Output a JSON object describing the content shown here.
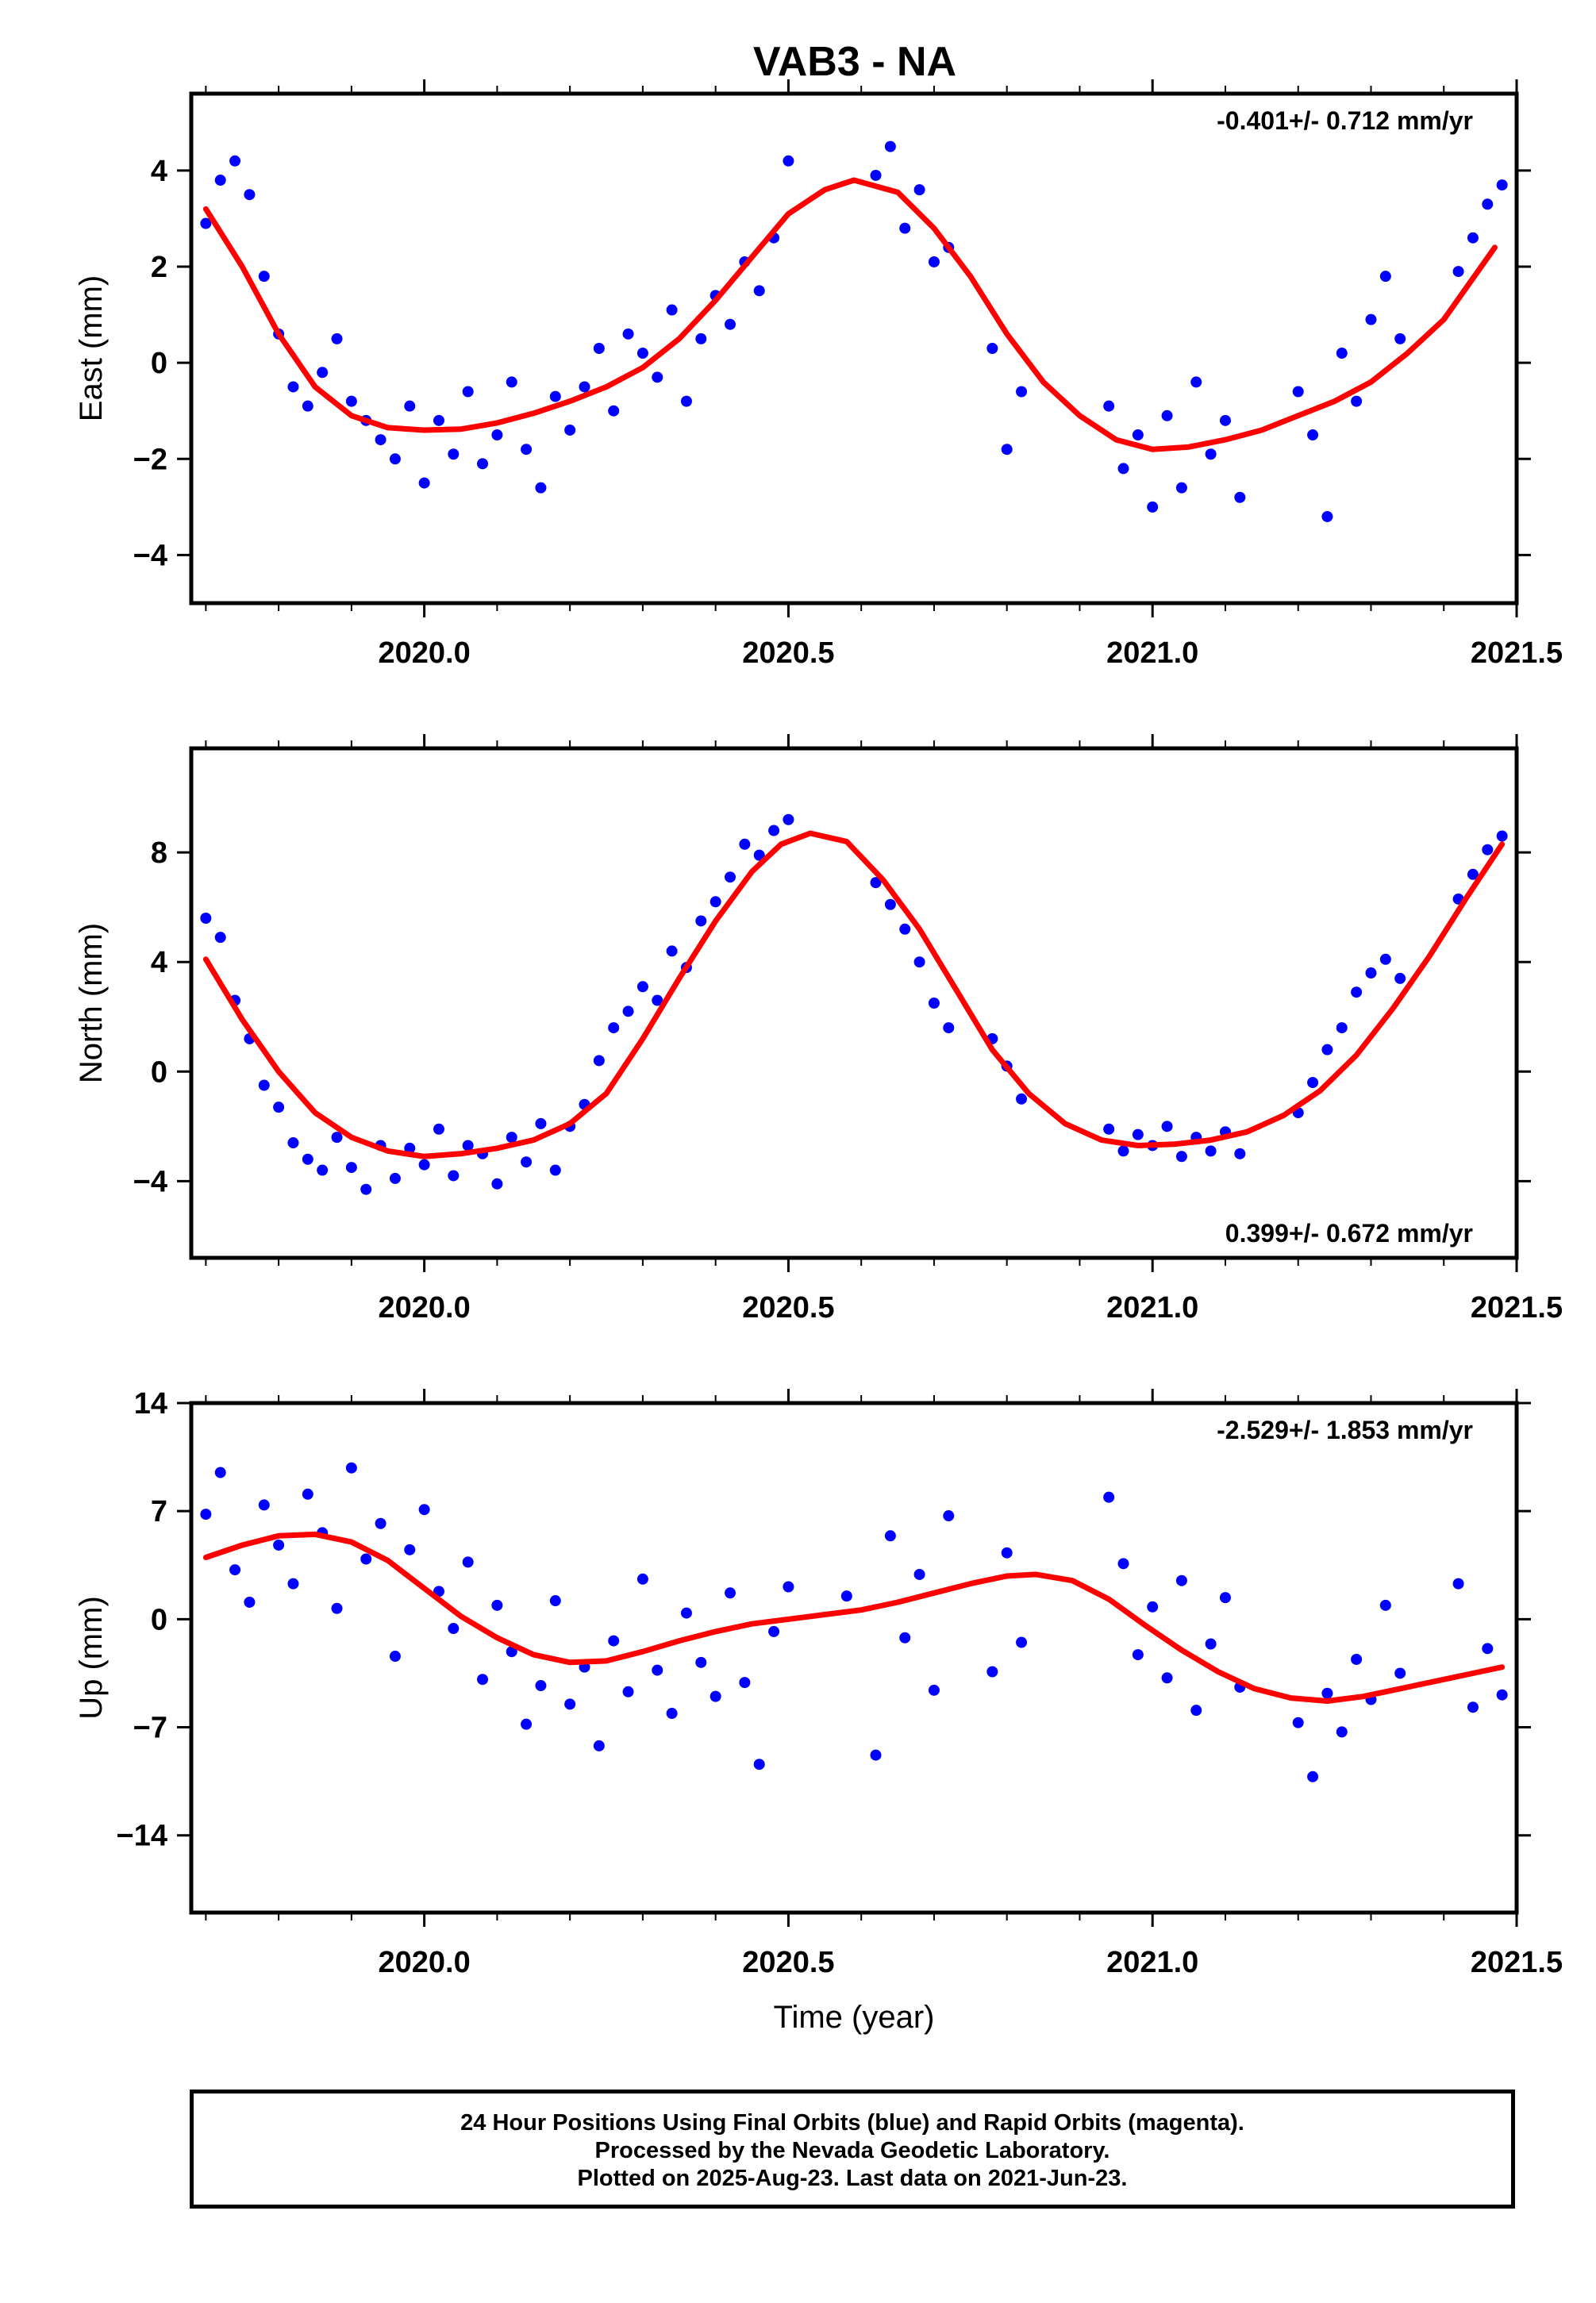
{
  "chart_data": [
    {
      "type": "scatter",
      "panel": "east",
      "title": "VAB3 - NA",
      "ylabel": "East (mm)",
      "xlabel": "",
      "xlim": [
        2019.68,
        2021.5
      ],
      "ylim": [
        -5.0,
        5.6
      ],
      "y_ticks": [
        -4,
        -2,
        0,
        2,
        4
      ],
      "y_tick_labels": [
        "−4",
        "−2",
        "0",
        "2",
        "4"
      ],
      "x_ticks": [
        2020.0,
        2020.5,
        2021.0,
        2021.5
      ],
      "x_tick_labels": [
        "2020.0",
        "2020.5",
        "2021.0",
        "2021.5"
      ],
      "annotation": "-0.401+/- 0.712 mm/yr",
      "grid": false,
      "series": [
        {
          "role": "points",
          "color": "#0000ff",
          "x": [
            2019.7,
            2019.72,
            2019.74,
            2019.76,
            2019.78,
            2019.8,
            2019.82,
            2019.84,
            2019.86,
            2019.88,
            2019.9,
            2019.92,
            2019.94,
            2019.96,
            2019.98,
            2020.0,
            2020.02,
            2020.04,
            2020.06,
            2020.08,
            2020.1,
            2020.12,
            2020.14,
            2020.16,
            2020.18,
            2020.2,
            2020.22,
            2020.24,
            2020.26,
            2020.28,
            2020.3,
            2020.32,
            2020.34,
            2020.36,
            2020.38,
            2020.4,
            2020.42,
            2020.44,
            2020.46,
            2020.48,
            2020.5,
            2020.62,
            2020.64,
            2020.66,
            2020.68,
            2020.7,
            2020.72,
            2020.78,
            2020.8,
            2020.82,
            2020.94,
            2020.96,
            2020.98,
            2021.0,
            2021.02,
            2021.04,
            2021.06,
            2021.08,
            2021.1,
            2021.12,
            2021.2,
            2021.22,
            2021.24,
            2021.26,
            2021.28,
            2021.3,
            2021.32,
            2021.34,
            2021.42,
            2021.44,
            2021.46,
            2021.48
          ],
          "y": [
            2.9,
            3.8,
            4.2,
            3.5,
            1.8,
            0.6,
            -0.5,
            -0.9,
            -0.2,
            0.5,
            -0.8,
            -1.2,
            -1.6,
            -2.0,
            -0.9,
            -2.5,
            -1.2,
            -1.9,
            -0.6,
            -2.1,
            -1.5,
            -0.4,
            -1.8,
            -2.6,
            -0.7,
            -1.4,
            -0.5,
            0.3,
            -1.0,
            0.6,
            0.2,
            -0.3,
            1.1,
            -0.8,
            0.5,
            1.4,
            0.8,
            2.1,
            1.5,
            2.6,
            4.2,
            3.9,
            4.5,
            2.8,
            3.6,
            2.1,
            2.4,
            0.3,
            -1.8,
            -0.6,
            -0.9,
            -2.2,
            -1.5,
            -3.0,
            -1.1,
            -2.6,
            -0.4,
            -1.9,
            -1.2,
            -2.8,
            -0.6,
            -1.5,
            -3.2,
            0.2,
            -0.8,
            0.9,
            1.8,
            0.5,
            1.9,
            2.6,
            3.3,
            3.7
          ]
        },
        {
          "role": "fit",
          "color": "#ff0000",
          "x": [
            2019.7,
            2019.75,
            2019.8,
            2019.85,
            2019.9,
            2019.95,
            2020.0,
            2020.05,
            2020.1,
            2020.15,
            2020.2,
            2020.25,
            2020.3,
            2020.35,
            2020.4,
            2020.45,
            2020.5,
            2020.55,
            2020.59,
            2020.65,
            2020.7,
            2020.75,
            2020.8,
            2020.85,
            2020.9,
            2020.95,
            2021.0,
            2021.05,
            2021.1,
            2021.15,
            2021.2,
            2021.25,
            2021.3,
            2021.35,
            2021.4,
            2021.47
          ],
          "y": [
            3.2,
            2.0,
            0.6,
            -0.5,
            -1.1,
            -1.35,
            -1.4,
            -1.38,
            -1.25,
            -1.05,
            -0.8,
            -0.5,
            -0.1,
            0.5,
            1.3,
            2.2,
            3.1,
            3.6,
            3.8,
            3.55,
            2.8,
            1.8,
            0.6,
            -0.4,
            -1.1,
            -1.6,
            -1.8,
            -1.75,
            -1.6,
            -1.4,
            -1.1,
            -0.8,
            -0.4,
            0.2,
            0.9,
            2.4
          ]
        }
      ]
    },
    {
      "type": "scatter",
      "panel": "north",
      "title": "",
      "ylabel": "North (mm)",
      "xlabel": "",
      "xlim": [
        2019.68,
        2021.5
      ],
      "ylim": [
        -6.8,
        11.8
      ],
      "y_ticks": [
        -4,
        0,
        4,
        8
      ],
      "y_tick_labels": [
        "−4",
        "0",
        "4",
        "8"
      ],
      "x_ticks": [
        2020.0,
        2020.5,
        2021.0,
        2021.5
      ],
      "x_tick_labels": [
        "2020.0",
        "2020.5",
        "2021.0",
        "2021.5"
      ],
      "annotation": "0.399+/- 0.672 mm/yr",
      "grid": false,
      "series": [
        {
          "role": "points",
          "color": "#0000ff",
          "x": [
            2019.7,
            2019.72,
            2019.74,
            2019.76,
            2019.78,
            2019.8,
            2019.82,
            2019.84,
            2019.86,
            2019.88,
            2019.9,
            2019.92,
            2019.94,
            2019.96,
            2019.98,
            2020.0,
            2020.02,
            2020.04,
            2020.06,
            2020.08,
            2020.1,
            2020.12,
            2020.14,
            2020.16,
            2020.18,
            2020.2,
            2020.22,
            2020.24,
            2020.26,
            2020.28,
            2020.3,
            2020.32,
            2020.34,
            2020.36,
            2020.38,
            2020.4,
            2020.42,
            2020.44,
            2020.46,
            2020.48,
            2020.5,
            2020.62,
            2020.64,
            2020.66,
            2020.68,
            2020.7,
            2020.72,
            2020.78,
            2020.8,
            2020.82,
            2020.94,
            2020.96,
            2020.98,
            2021.0,
            2021.02,
            2021.04,
            2021.06,
            2021.08,
            2021.1,
            2021.12,
            2021.2,
            2021.22,
            2021.24,
            2021.26,
            2021.28,
            2021.3,
            2021.32,
            2021.34,
            2021.42,
            2021.44,
            2021.46,
            2021.48
          ],
          "y": [
            5.6,
            4.9,
            2.6,
            1.2,
            -0.5,
            -1.3,
            -2.6,
            -3.2,
            -3.6,
            -2.4,
            -3.5,
            -4.3,
            -2.7,
            -3.9,
            -2.8,
            -3.4,
            -2.1,
            -3.8,
            -2.7,
            -3.0,
            -4.1,
            -2.4,
            -3.3,
            -1.9,
            -3.6,
            -2.0,
            -1.2,
            0.4,
            1.6,
            2.2,
            3.1,
            2.6,
            4.4,
            3.8,
            5.5,
            6.2,
            7.1,
            8.3,
            7.9,
            8.8,
            9.2,
            6.9,
            6.1,
            5.2,
            4.0,
            2.5,
            1.6,
            1.2,
            0.2,
            -1.0,
            -2.1,
            -2.9,
            -2.3,
            -2.7,
            -2.0,
            -3.1,
            -2.4,
            -2.9,
            -2.2,
            -3.0,
            -1.5,
            -0.4,
            0.8,
            1.6,
            2.9,
            3.6,
            4.1,
            3.4,
            6.3,
            7.2,
            8.1,
            8.6
          ]
        },
        {
          "role": "fit",
          "color": "#ff0000",
          "x": [
            2019.7,
            2019.75,
            2019.8,
            2019.85,
            2019.9,
            2019.95,
            2020.0,
            2020.05,
            2020.1,
            2020.15,
            2020.2,
            2020.25,
            2020.3,
            2020.35,
            2020.4,
            2020.45,
            2020.49,
            2020.53,
            2020.58,
            2020.63,
            2020.68,
            2020.73,
            2020.78,
            2020.83,
            2020.88,
            2020.93,
            2020.98,
            2021.03,
            2021.08,
            2021.13,
            2021.18,
            2021.23,
            2021.28,
            2021.33,
            2021.38,
            2021.43,
            2021.48
          ],
          "y": [
            4.1,
            1.9,
            0.0,
            -1.5,
            -2.4,
            -2.9,
            -3.1,
            -3.0,
            -2.8,
            -2.5,
            -1.9,
            -0.8,
            1.2,
            3.4,
            5.5,
            7.3,
            8.3,
            8.7,
            8.4,
            7.0,
            5.2,
            3.0,
            0.8,
            -0.8,
            -1.9,
            -2.5,
            -2.7,
            -2.65,
            -2.5,
            -2.2,
            -1.6,
            -0.7,
            0.6,
            2.3,
            4.2,
            6.3,
            8.3
          ]
        }
      ]
    },
    {
      "type": "scatter",
      "panel": "up",
      "title": "",
      "ylabel": "Up (mm)",
      "xlabel": "Time (year)",
      "xlim": [
        2019.68,
        2021.5
      ],
      "ylim": [
        -19.0,
        14.0
      ],
      "y_ticks": [
        -14,
        -7,
        0,
        7,
        14
      ],
      "y_tick_labels": [
        "−14",
        "−7",
        "0",
        "7",
        "14"
      ],
      "x_ticks": [
        2020.0,
        2020.5,
        2021.0,
        2021.5
      ],
      "x_tick_labels": [
        "2020.0",
        "2020.5",
        "2021.0",
        "2021.5"
      ],
      "annotation": "-2.529+/- 1.853 mm/yr",
      "grid": false,
      "series": [
        {
          "role": "points",
          "color": "#0000ff",
          "x": [
            2019.7,
            2019.72,
            2019.74,
            2019.76,
            2019.78,
            2019.8,
            2019.82,
            2019.84,
            2019.86,
            2019.88,
            2019.9,
            2019.92,
            2019.94,
            2019.96,
            2019.98,
            2020.0,
            2020.02,
            2020.04,
            2020.06,
            2020.08,
            2020.1,
            2020.12,
            2020.14,
            2020.16,
            2020.18,
            2020.2,
            2020.22,
            2020.24,
            2020.26,
            2020.28,
            2020.3,
            2020.32,
            2020.34,
            2020.36,
            2020.38,
            2020.4,
            2020.42,
            2020.44,
            2020.46,
            2020.48,
            2020.5,
            2020.58,
            2020.62,
            2020.64,
            2020.66,
            2020.68,
            2020.7,
            2020.72,
            2020.78,
            2020.8,
            2020.82,
            2020.94,
            2020.96,
            2020.98,
            2021.0,
            2021.02,
            2021.04,
            2021.06,
            2021.08,
            2021.1,
            2021.12,
            2021.2,
            2021.22,
            2021.24,
            2021.26,
            2021.28,
            2021.3,
            2021.32,
            2021.34,
            2021.42,
            2021.44,
            2021.46,
            2021.48
          ],
          "y": [
            6.8,
            9.5,
            3.2,
            1.1,
            7.4,
            4.8,
            2.3,
            8.1,
            5.6,
            0.7,
            9.8,
            3.9,
            6.2,
            -2.4,
            4.5,
            7.1,
            1.8,
            -0.6,
            3.7,
            -3.9,
            0.9,
            -2.1,
            -6.8,
            -4.3,
            1.2,
            -5.5,
            -3.1,
            -8.2,
            -1.4,
            -4.7,
            2.6,
            -3.3,
            -6.1,
            0.4,
            -2.8,
            -5.0,
            1.7,
            -4.1,
            -9.4,
            -0.8,
            2.1,
            1.5,
            -8.8,
            5.4,
            -1.2,
            2.9,
            -4.6,
            6.7,
            -3.4,
            4.3,
            -1.5,
            7.9,
            3.6,
            -2.3,
            0.8,
            -3.8,
            2.5,
            -5.9,
            -1.6,
            1.4,
            -4.4,
            -6.7,
            -10.2,
            -4.8,
            -7.3,
            -2.6,
            -5.2,
            0.9,
            -3.5,
            2.3,
            -5.7,
            -1.9,
            -4.9
          ]
        },
        {
          "role": "fit",
          "color": "#ff0000",
          "x": [
            2019.7,
            2019.75,
            2019.8,
            2019.85,
            2019.9,
            2019.95,
            2020.0,
            2020.05,
            2020.1,
            2020.15,
            2020.2,
            2020.25,
            2020.3,
            2020.35,
            2020.4,
            2020.45,
            2020.5,
            2020.55,
            2020.6,
            2020.65,
            2020.7,
            2020.75,
            2020.8,
            2020.84,
            2020.89,
            2020.94,
            2020.99,
            2021.04,
            2021.09,
            2021.14,
            2021.19,
            2021.24,
            2021.29,
            2021.34,
            2021.39,
            2021.44,
            2021.48
          ],
          "y": [
            4.0,
            4.8,
            5.4,
            5.5,
            5.0,
            3.8,
            2.0,
            0.2,
            -1.2,
            -2.3,
            -2.8,
            -2.7,
            -2.1,
            -1.4,
            -0.8,
            -0.3,
            0.0,
            0.3,
            0.6,
            1.1,
            1.7,
            2.3,
            2.8,
            2.9,
            2.5,
            1.3,
            -0.4,
            -2.0,
            -3.4,
            -4.5,
            -5.1,
            -5.3,
            -5.0,
            -4.5,
            -4.0,
            -3.5,
            -3.1
          ]
        }
      ]
    }
  ],
  "footer": {
    "line1": "24 Hour Positions Using Final Orbits (blue) and Rapid Orbits (magenta).",
    "line2": "Processed by the Nevada Geodetic Laboratory.",
    "line3": "Plotted on 2025-Aug-23. Last data on 2021-Jun-23."
  }
}
